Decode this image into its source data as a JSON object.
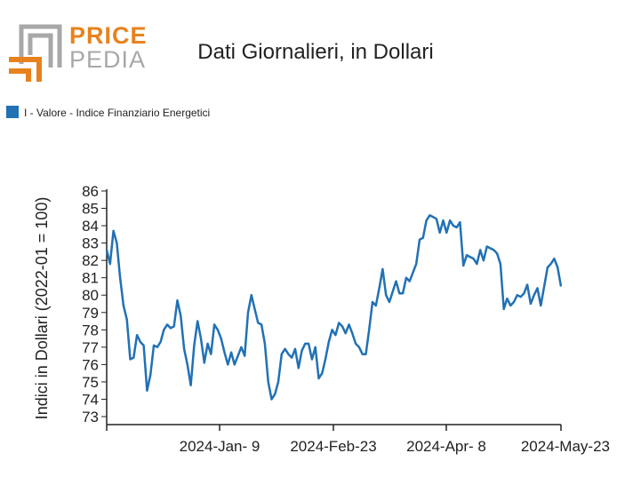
{
  "logo": {
    "line1": "PRICE",
    "line2": "PEDIA",
    "color_primary": "#e8821e",
    "color_secondary": "#a8a8a8"
  },
  "chart_data": {
    "type": "line",
    "title": "Dati Giornalieri, in Dollari",
    "ylabel": "Indici in Dollari (2022-01 = 100)",
    "xlabel": "",
    "ylim": [
      73,
      86
    ],
    "yticks": [
      73,
      74,
      75,
      76,
      77,
      78,
      79,
      80,
      81,
      82,
      83,
      84,
      85,
      86
    ],
    "x_tick_labels": [
      "2024-Jan- 9",
      "2024-Feb-23",
      "2024-Apr- 8",
      "2024-May-23"
    ],
    "legend_position": "top-left",
    "grid": false,
    "series": [
      {
        "name": "I - Valore - Indice Finanziario Energetici",
        "color": "#2171b5",
        "values": [
          82.6,
          81.8,
          83.7,
          83.0,
          81.0,
          79.4,
          78.6,
          76.3,
          76.4,
          77.7,
          77.3,
          77.1,
          74.5,
          75.4,
          77.1,
          77.0,
          77.3,
          78.0,
          78.3,
          78.1,
          78.2,
          79.7,
          78.8,
          76.9,
          76.0,
          74.8,
          77.1,
          78.5,
          77.5,
          76.1,
          77.2,
          76.6,
          78.3,
          78.0,
          77.5,
          76.7,
          76.0,
          76.7,
          76.0,
          76.5,
          77.0,
          76.5,
          79.0,
          80.0,
          79.2,
          78.4,
          78.3,
          77.2,
          75.0,
          74.0,
          74.3,
          75.0,
          76.6,
          76.9,
          76.6,
          76.4,
          76.9,
          75.8,
          76.8,
          77.2,
          77.2,
          76.3,
          77.0,
          75.2,
          75.5,
          76.3,
          77.3,
          78.0,
          77.7,
          78.4,
          78.2,
          77.8,
          78.3,
          77.8,
          77.2,
          77.0,
          76.6,
          76.6,
          78.0,
          79.6,
          79.4,
          80.4,
          81.5,
          80.0,
          79.6,
          80.2,
          80.8,
          80.1,
          80.1,
          81.0,
          80.8,
          81.3,
          81.8,
          83.2,
          83.3,
          84.3,
          84.6,
          84.5,
          84.4,
          83.6,
          84.3,
          83.6,
          84.3,
          84.0,
          83.9,
          84.2,
          81.7,
          82.3,
          82.2,
          82.1,
          81.8,
          82.6,
          82.0,
          82.8,
          82.7,
          82.6,
          82.4,
          81.8,
          79.2,
          79.8,
          79.4,
          79.6,
          80.0,
          79.9,
          80.1,
          80.6,
          79.5,
          80.0,
          80.4,
          79.4,
          80.5,
          81.6,
          81.8,
          82.1,
          81.6,
          80.5
        ]
      }
    ]
  }
}
